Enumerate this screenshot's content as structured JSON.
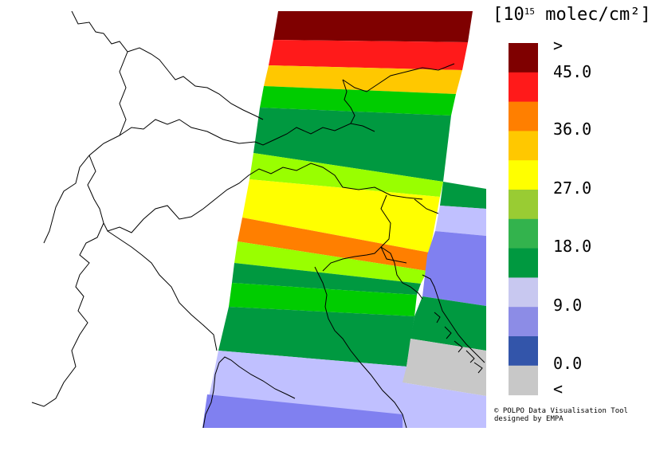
{
  "legend": {
    "unit_prefix": "[10",
    "unit_exp": "15",
    "unit_suffix": " molec/cm²]",
    "labels": [
      ">",
      "45.0",
      "36.0",
      "27.0",
      "18.0",
      "9.0",
      "0.0",
      "<"
    ],
    "colors": [
      "#7f0000",
      "#ff1a1a",
      "#ff7f00",
      "#ffc800",
      "#ffff00",
      "#99cc33",
      "#33b34d",
      "#009940",
      "#c8c8f0",
      "#8c8ce6",
      "#3355aa",
      "#c8c8c8"
    ]
  },
  "map": {
    "bands": [
      {
        "value": 50,
        "color": "#7f0000"
      },
      {
        "value": 44,
        "color": "#ff1a1a"
      },
      {
        "value": 38,
        "color": "#ffc800"
      },
      {
        "value": 21,
        "color": "#00cc00"
      },
      {
        "value": 16,
        "color": "#009940"
      },
      {
        "value": 25,
        "color": "#99ff00"
      },
      {
        "value": 29,
        "color": "#ffff00"
      },
      {
        "value": 34,
        "color": "#ff7f00"
      },
      {
        "value": 25,
        "color": "#99ff00"
      },
      {
        "value": 16,
        "color": "#009940"
      },
      {
        "value": 21,
        "color": "#00cc00"
      },
      {
        "value": 16,
        "color": "#009940"
      },
      {
        "value": 11,
        "color": "#c0c0ff"
      },
      {
        "value": 6,
        "color": "#8080f0"
      }
    ]
  },
  "credit": {
    "line1": "© POLPO Data Visualisation Tool",
    "line2": "designed by EMPA"
  }
}
